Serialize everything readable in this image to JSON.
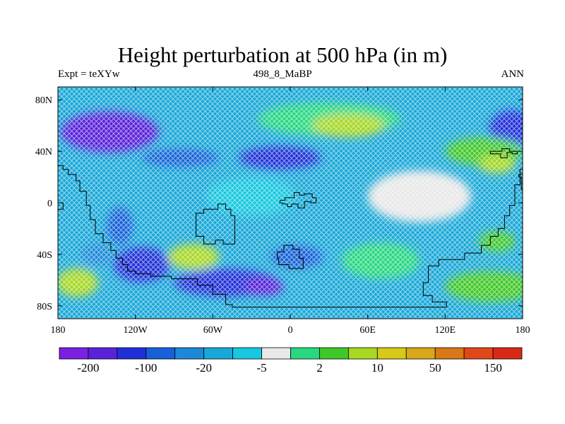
{
  "figure": {
    "title": "Height perturbation at 500 hPa (in m)",
    "left_label": "Expt = teXYw",
    "center_label": "498_8_MaBP",
    "right_label": "ANN"
  },
  "map": {
    "projection": "cylindrical-equidistant",
    "lon_range": [
      -180,
      180
    ],
    "lat_range": [
      -90,
      90
    ],
    "x_ticks": [
      {
        "value": -180,
        "label": "180"
      },
      {
        "value": -120,
        "label": "120W"
      },
      {
        "value": -60,
        "label": "60W"
      },
      {
        "value": 0,
        "label": "0"
      },
      {
        "value": 60,
        "label": "60E"
      },
      {
        "value": 120,
        "label": "120E"
      },
      {
        "value": 180,
        "label": "180"
      }
    ],
    "y_ticks": [
      {
        "value": 80,
        "label": "80N"
      },
      {
        "value": 40,
        "label": "40N"
      },
      {
        "value": 0,
        "label": "0"
      },
      {
        "value": -40,
        "label": "40S"
      },
      {
        "value": -80,
        "label": "80S"
      }
    ],
    "background_level": 5,
    "features": [
      {
        "lon": -140,
        "lat": 55,
        "rx": 38,
        "ry": 16,
        "level": 1
      },
      {
        "lon": 172,
        "lat": 58,
        "rx": 18,
        "ry": 14,
        "level": 2
      },
      {
        "lon": -85,
        "lat": 35,
        "rx": 30,
        "ry": 7,
        "level": 3
      },
      {
        "lon": -8,
        "lat": 35,
        "rx": 32,
        "ry": 9,
        "level": 2
      },
      {
        "lon": -132,
        "lat": -18,
        "rx": 10,
        "ry": 15,
        "level": 3
      },
      {
        "lon": -115,
        "lat": -48,
        "rx": 22,
        "ry": 14,
        "level": 2
      },
      {
        "lon": -150,
        "lat": -40,
        "rx": 12,
        "ry": 9,
        "level": 4
      },
      {
        "lon": -50,
        "lat": -62,
        "rx": 40,
        "ry": 11,
        "level": 2
      },
      {
        "lon": -20,
        "lat": -65,
        "rx": 15,
        "ry": 7,
        "level": 1
      },
      {
        "lon": 5,
        "lat": -42,
        "rx": 20,
        "ry": 9,
        "level": 3
      },
      {
        "lon": 30,
        "lat": 65,
        "rx": 55,
        "ry": 13,
        "level": 8
      },
      {
        "lon": 45,
        "lat": 60,
        "rx": 28,
        "ry": 9,
        "level": 10
      },
      {
        "lon": 150,
        "lat": 40,
        "rx": 30,
        "ry": 11,
        "level": 9
      },
      {
        "lon": 160,
        "lat": 30,
        "rx": 14,
        "ry": 7,
        "level": 10
      },
      {
        "lon": -75,
        "lat": -42,
        "rx": 20,
        "ry": 10,
        "level": 10
      },
      {
        "lon": -165,
        "lat": -62,
        "rx": 16,
        "ry": 11,
        "level": 10
      },
      {
        "lon": 70,
        "lat": -45,
        "rx": 30,
        "ry": 14,
        "level": 8
      },
      {
        "lon": 155,
        "lat": -65,
        "rx": 35,
        "ry": 12,
        "level": 9
      },
      {
        "lon": 160,
        "lat": -30,
        "rx": 14,
        "ry": 8,
        "level": 9
      },
      {
        "lon": 100,
        "lat": 5,
        "rx": 40,
        "ry": 20,
        "level": 7
      },
      {
        "lon": -30,
        "lat": 5,
        "rx": 35,
        "ry": 15,
        "level": 6
      }
    ],
    "coastlines": [
      [
        [
          -180,
          29
        ],
        [
          -176,
          29
        ],
        [
          -176,
          26
        ],
        [
          -172,
          26
        ],
        [
          -172,
          22
        ],
        [
          -166,
          22
        ],
        [
          -166,
          17
        ],
        [
          -163,
          17
        ],
        [
          -163,
          9
        ],
        [
          -158,
          9
        ],
        [
          -158,
          -2
        ],
        [
          -155,
          -2
        ],
        [
          -155,
          -13
        ],
        [
          -151,
          -13
        ],
        [
          -151,
          -24
        ],
        [
          -145,
          -24
        ],
        [
          -145,
          -31
        ],
        [
          -139,
          -31
        ],
        [
          -139,
          -37
        ],
        [
          -135,
          -37
        ],
        [
          -135,
          -43
        ],
        [
          -130,
          -43
        ],
        [
          -130,
          -48
        ],
        [
          -126,
          -48
        ],
        [
          -126,
          -53
        ],
        [
          -120,
          -53
        ],
        [
          -120,
          -55
        ],
        [
          -108,
          -55
        ],
        [
          -108,
          -57
        ],
        [
          -92,
          -57
        ],
        [
          -92,
          -59
        ],
        [
          -72,
          -59
        ],
        [
          -72,
          -64
        ],
        [
          -60,
          -64
        ],
        [
          -60,
          -71
        ],
        [
          -50,
          -71
        ],
        [
          -50,
          -79
        ],
        [
          -45,
          -79
        ],
        [
          -45,
          -81
        ],
        [
          -30,
          -81
        ],
        [
          -10,
          -81
        ],
        [
          20,
          -81
        ],
        [
          60,
          -81
        ],
        [
          100,
          -81
        ],
        [
          121,
          -81
        ],
        [
          121,
          -77
        ],
        [
          110,
          -77
        ],
        [
          110,
          -72
        ],
        [
          103,
          -72
        ],
        [
          103,
          -62
        ],
        [
          107,
          -62
        ],
        [
          107,
          -49
        ],
        [
          115,
          -49
        ],
        [
          115,
          -44
        ],
        [
          135,
          -44
        ],
        [
          135,
          -39
        ],
        [
          148,
          -39
        ],
        [
          148,
          -33
        ],
        [
          155,
          -33
        ],
        [
          155,
          -26
        ],
        [
          161,
          -26
        ],
        [
          161,
          -20
        ],
        [
          166,
          -20
        ],
        [
          166,
          -10
        ],
        [
          170,
          -10
        ],
        [
          170,
          -2
        ],
        [
          174,
          -2
        ],
        [
          174,
          14
        ],
        [
          178,
          14
        ],
        [
          178,
          26
        ],
        [
          180,
          26
        ]
      ],
      [
        [
          -180,
          -5
        ],
        [
          -176,
          -5
        ],
        [
          -176,
          0
        ],
        [
          -180,
          0
        ]
      ],
      [
        [
          -73,
          -24
        ],
        [
          -73,
          -8
        ],
        [
          -67,
          -8
        ],
        [
          -67,
          -5
        ],
        [
          -56,
          -5
        ],
        [
          -56,
          -1
        ],
        [
          -50,
          -1
        ],
        [
          -50,
          -5
        ],
        [
          -46,
          -5
        ],
        [
          -46,
          -10
        ],
        [
          -43,
          -10
        ],
        [
          -43,
          -32
        ],
        [
          -52,
          -32
        ],
        [
          -52,
          -29
        ],
        [
          -58,
          -29
        ],
        [
          -58,
          -32
        ],
        [
          -67,
          -32
        ],
        [
          -67,
          -26
        ],
        [
          -73,
          -26
        ],
        [
          -73,
          -24
        ]
      ],
      [
        [
          -10,
          -38
        ],
        [
          -5,
          -38
        ],
        [
          -5,
          -33
        ],
        [
          2,
          -33
        ],
        [
          2,
          -36
        ],
        [
          7,
          -36
        ],
        [
          7,
          -43
        ],
        [
          10,
          -43
        ],
        [
          10,
          -51
        ],
        [
          -1,
          -51
        ],
        [
          -1,
          -48
        ],
        [
          -9,
          -48
        ],
        [
          -9,
          -43
        ],
        [
          -10,
          -43
        ],
        [
          -10,
          -38
        ]
      ],
      [
        [
          -8,
          2
        ],
        [
          -4,
          2
        ],
        [
          -4,
          4
        ],
        [
          3,
          4
        ],
        [
          3,
          8
        ],
        [
          7,
          8
        ],
        [
          7,
          6
        ],
        [
          11,
          6
        ],
        [
          11,
          7
        ],
        [
          17,
          7
        ],
        [
          17,
          4
        ],
        [
          20,
          4
        ],
        [
          20,
          0
        ],
        [
          16,
          0
        ],
        [
          16,
          1
        ],
        [
          11,
          1
        ],
        [
          11,
          -4
        ],
        [
          6,
          -4
        ],
        [
          6,
          -1
        ],
        [
          1,
          -1
        ],
        [
          1,
          -3
        ],
        [
          -2,
          -3
        ],
        [
          -2,
          -1
        ],
        [
          -6,
          -1
        ],
        [
          -6,
          0
        ],
        [
          -8,
          0
        ],
        [
          -8,
          2
        ]
      ],
      [
        [
          155,
          40
        ],
        [
          155,
          38
        ],
        [
          163,
          38
        ],
        [
          163,
          35
        ],
        [
          168,
          35
        ],
        [
          168,
          39
        ],
        [
          172,
          39
        ],
        [
          172,
          38
        ],
        [
          176,
          38
        ],
        [
          176,
          40
        ],
        [
          170,
          40
        ],
        [
          170,
          42
        ],
        [
          164,
          42
        ],
        [
          164,
          40
        ],
        [
          155,
          40
        ]
      ],
      [
        [
          180,
          10
        ],
        [
          179,
          10
        ],
        [
          179,
          20
        ],
        [
          177,
          20
        ],
        [
          177,
          22
        ],
        [
          180,
          22
        ]
      ]
    ]
  },
  "colorbar": {
    "colors": [
      "#7b20e0",
      "#5a22d8",
      "#2030d8",
      "#1860d8",
      "#1e88d8",
      "#18a8d8",
      "#18c8e0",
      "#e8e8e8",
      "#28d880",
      "#40c828",
      "#a8d820",
      "#d8c818",
      "#d8a818",
      "#d87818",
      "#e04818",
      "#d82818"
    ],
    "labels": [
      "-200",
      "-100",
      "-20",
      "-5",
      "2",
      "10",
      "50",
      "150"
    ]
  }
}
